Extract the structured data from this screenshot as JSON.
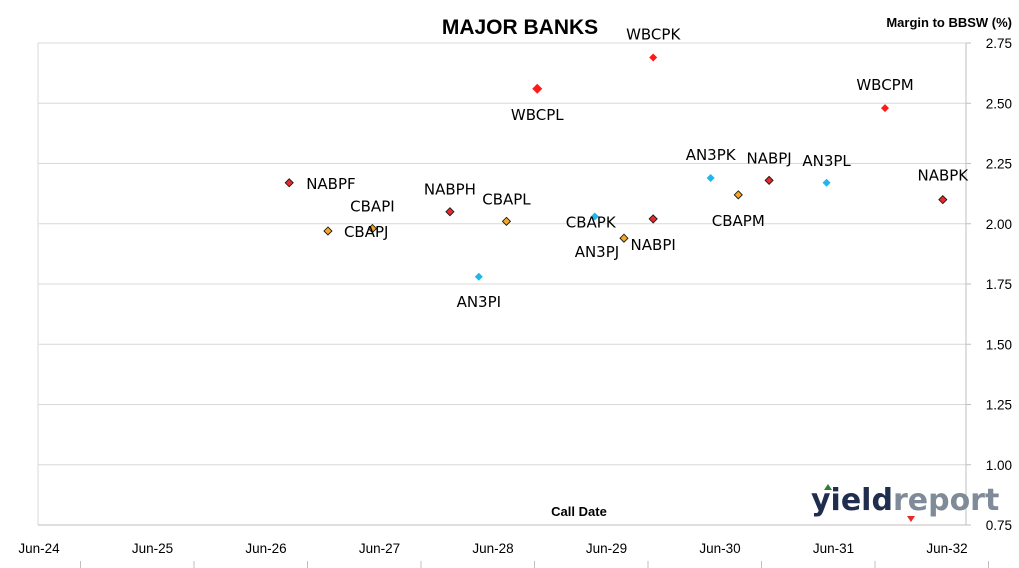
{
  "chart_data": {
    "type": "scatter",
    "title": "MAJOR BANKS",
    "xlabel": "Call Date",
    "ylabel": "Margin to BBSW (%)",
    "x_range": [
      "2024-06-01",
      "2032-06-01"
    ],
    "x_tick_labels": [
      "Jun-24",
      "Jun-25",
      "Jun-26",
      "Jun-27",
      "Jun-28",
      "Jun-29",
      "Jun-30",
      "Jun-31",
      "Jun-32"
    ],
    "ylim": [
      0.75,
      2.75
    ],
    "y_ticks": [
      "0.75",
      "1.00",
      "1.25",
      "1.50",
      "1.75",
      "2.00",
      "2.25",
      "2.50",
      "2.75"
    ],
    "grid": "horizontal",
    "legend": "none",
    "colors": {
      "ANZ": "#1fb7ea",
      "CBA": "#f5a623",
      "NAB": "#e8282a",
      "WBC": "#ff1a1a"
    },
    "points": [
      {
        "label": "NABPF",
        "bank": "NAB",
        "x": "2026-08-01",
        "y": 2.17
      },
      {
        "label": "CBAPJ",
        "bank": "CBA",
        "x": "2026-12-01",
        "y": 1.97
      },
      {
        "label": "CBAPI",
        "bank": "CBA",
        "x": "2027-04-20",
        "y": 1.98
      },
      {
        "label": "NABPH",
        "bank": "NAB",
        "x": "2027-12-20",
        "y": 2.05
      },
      {
        "label": "AN3PI",
        "bank": "ANZ",
        "x": "2028-03-20",
        "y": 1.78
      },
      {
        "label": "CBAPL",
        "bank": "CBA",
        "x": "2028-06-15",
        "y": 2.01
      },
      {
        "label": "WBCPL",
        "bank": "WBC",
        "x": "2028-09-20",
        "y": 2.56
      },
      {
        "label": "CBAPK",
        "bank": "ANZ",
        "x": "2029-03-20",
        "y": 2.03
      },
      {
        "label": "AN3PJ",
        "bank": "CBA",
        "x": "2029-06-20",
        "y": 1.94
      },
      {
        "label": "WBCPK",
        "bank": "WBC",
        "x": "2029-09-20",
        "y": 2.69
      },
      {
        "label": "NABPI",
        "bank": "NAB",
        "x": "2029-09-20",
        "y": 2.02
      },
      {
        "label": "AN3PK",
        "bank": "ANZ",
        "x": "2030-03-20",
        "y": 2.19
      },
      {
        "label": "CBAPM",
        "bank": "CBA",
        "x": "2030-06-15",
        "y": 2.12
      },
      {
        "label": "NABPJ",
        "bank": "NAB",
        "x": "2030-09-20",
        "y": 2.18
      },
      {
        "label": "AN3PL",
        "bank": "ANZ",
        "x": "2031-03-20",
        "y": 2.17
      },
      {
        "label": "WBCPM",
        "bank": "WBC",
        "x": "2031-09-20",
        "y": 2.48
      },
      {
        "label": "NABPK",
        "bank": "NAB",
        "x": "2032-03-20",
        "y": 2.1
      }
    ]
  },
  "logo": {
    "text_a": "yield",
    "text_b": "report"
  }
}
